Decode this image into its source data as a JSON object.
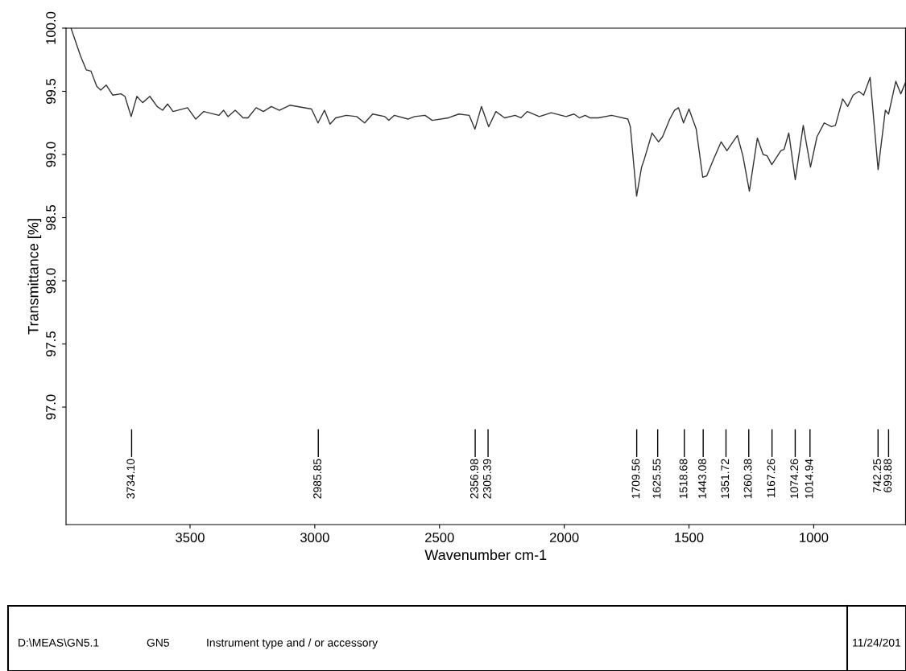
{
  "chart_data": {
    "type": "line",
    "xlabel": "Wavenumber cm-1",
    "ylabel": "Transmittance [%]",
    "xlim": [
      3997,
      632
    ],
    "xticks": [
      3500,
      3000,
      2500,
      2000,
      1500,
      1000
    ],
    "ylim": [
      96.07,
      100.0
    ],
    "yticks": [
      {
        "value": 97.0,
        "label": "97.0"
      },
      {
        "value": 97.5,
        "label": "97.5"
      },
      {
        "value": 98.0,
        "label": "98.0"
      },
      {
        "value": 98.5,
        "label": "98.5"
      },
      {
        "value": 99.0,
        "label": "99.0"
      },
      {
        "value": 99.5,
        "label": "99.5"
      },
      {
        "value": 100.0,
        "label": "100.0"
      }
    ],
    "grid": false,
    "legend": false,
    "marker": "none",
    "line_style": "solid",
    "series": [
      {
        "color": "#333333",
        "x": [
          3977,
          3939,
          3916,
          3897,
          3874,
          3858,
          3836,
          3810,
          3777,
          3761,
          3736,
          3713,
          3690,
          3661,
          3632,
          3610,
          3590,
          3568,
          3510,
          3477,
          3445,
          3384,
          3365,
          3348,
          3319,
          3287,
          3268,
          3235,
          3206,
          3174,
          3142,
          3100,
          3013,
          2987,
          2961,
          2939,
          2916,
          2874,
          2832,
          2800,
          2768,
          2719,
          2703,
          2681,
          2626,
          2600,
          2558,
          2529,
          2464,
          2423,
          2381,
          2358,
          2332,
          2303,
          2274,
          2239,
          2197,
          2174,
          2148,
          2100,
          2052,
          1993,
          1961,
          1939,
          1916,
          1897,
          1864,
          1810,
          1745,
          1735,
          1710,
          1690,
          1681,
          1648,
          1622,
          1606,
          1577,
          1558,
          1542,
          1522,
          1500,
          1471,
          1445,
          1429,
          1400,
          1371,
          1348,
          1306,
          1284,
          1258,
          1226,
          1203,
          1187,
          1168,
          1132,
          1119,
          1100,
          1074,
          1042,
          1013,
          987,
          958,
          929,
          913,
          884,
          864,
          842,
          819,
          800,
          774,
          742,
          713,
          700,
          671,
          651,
          632
        ],
        "values": [
          100.0,
          99.78,
          99.67,
          99.66,
          99.54,
          99.51,
          99.55,
          99.47,
          99.48,
          99.46,
          99.3,
          99.46,
          99.41,
          99.46,
          99.38,
          99.35,
          99.4,
          99.34,
          99.37,
          99.28,
          99.34,
          99.31,
          99.35,
          99.3,
          99.35,
          99.29,
          99.29,
          99.37,
          99.34,
          99.38,
          99.35,
          99.39,
          99.36,
          99.25,
          99.35,
          99.24,
          99.29,
          99.31,
          99.3,
          99.25,
          99.32,
          99.3,
          99.27,
          99.31,
          99.28,
          99.3,
          99.31,
          99.27,
          99.29,
          99.32,
          99.31,
          99.2,
          99.38,
          99.22,
          99.34,
          99.29,
          99.31,
          99.29,
          99.34,
          99.3,
          99.33,
          99.3,
          99.32,
          99.29,
          99.31,
          99.29,
          99.29,
          99.31,
          99.28,
          99.22,
          98.67,
          98.9,
          98.95,
          99.17,
          99.1,
          99.14,
          99.28,
          99.35,
          99.37,
          99.25,
          99.36,
          99.2,
          98.82,
          98.83,
          98.97,
          99.1,
          99.03,
          99.15,
          98.99,
          98.71,
          99.13,
          99.0,
          98.99,
          98.92,
          99.03,
          99.04,
          99.17,
          98.8,
          99.23,
          98.9,
          99.14,
          99.25,
          99.22,
          99.23,
          99.44,
          99.38,
          99.47,
          99.5,
          99.47,
          99.61,
          98.88,
          99.35,
          99.32,
          99.58,
          99.48,
          99.57
        ]
      },
      {
        "color": "#000000",
        "x": [
          3734.1,
          3734.1
        ],
        "values": [
          96.82,
          96.61
        ]
      },
      {
        "color": "#000000",
        "x": [
          2985.85,
          2985.85
        ],
        "values": [
          96.82,
          96.61
        ]
      },
      {
        "color": "#000000",
        "x": [
          2356.98,
          2356.98
        ],
        "values": [
          96.82,
          96.61
        ]
      },
      {
        "color": "#000000",
        "x": [
          2305.39,
          2305.39
        ],
        "values": [
          96.82,
          96.61
        ]
      },
      {
        "color": "#000000",
        "x": [
          1709.56,
          1709.56
        ],
        "values": [
          96.82,
          96.61
        ]
      },
      {
        "color": "#000000",
        "x": [
          1625.55,
          1625.55
        ],
        "values": [
          96.82,
          96.61
        ]
      },
      {
        "color": "#000000",
        "x": [
          1518.68,
          1518.68
        ],
        "values": [
          96.82,
          96.61
        ]
      },
      {
        "color": "#000000",
        "x": [
          1443.08,
          1443.08
        ],
        "values": [
          96.82,
          96.61
        ]
      },
      {
        "color": "#000000",
        "x": [
          1351.72,
          1351.72
        ],
        "values": [
          96.82,
          96.61
        ]
      },
      {
        "color": "#000000",
        "x": [
          1260.38,
          1260.38
        ],
        "values": [
          96.82,
          96.61
        ]
      },
      {
        "color": "#000000",
        "x": [
          1167.26,
          1167.26
        ],
        "values": [
          96.82,
          96.61
        ]
      },
      {
        "color": "#000000",
        "x": [
          1074.26,
          1074.26
        ],
        "values": [
          96.82,
          96.61
        ]
      },
      {
        "color": "#000000",
        "x": [
          1014.94,
          1014.94
        ],
        "values": [
          96.82,
          96.61
        ]
      },
      {
        "color": "#000000",
        "x": [
          742.25,
          742.25
        ],
        "values": [
          96.82,
          96.61
        ]
      },
      {
        "color": "#000000",
        "x": [
          699.88,
          699.88
        ],
        "values": [
          96.82,
          96.61
        ]
      }
    ],
    "annotations": [
      {
        "text": "3734.10",
        "x": 3734.1,
        "y": 96.61
      },
      {
        "text": "2985.85",
        "x": 2985.85,
        "y": 96.61
      },
      {
        "text": "2356.98",
        "x": 2356.98,
        "y": 96.61
      },
      {
        "text": "2305.39",
        "x": 2305.39,
        "y": 96.61
      },
      {
        "text": "1709.56",
        "x": 1709.56,
        "y": 96.61
      },
      {
        "text": "1625.55",
        "x": 1625.55,
        "y": 96.61
      },
      {
        "text": "1518.68",
        "x": 1518.68,
        "y": 96.61
      },
      {
        "text": "1443.08",
        "x": 1443.08,
        "y": 96.61
      },
      {
        "text": "1351.72",
        "x": 1351.72,
        "y": 96.61
      },
      {
        "text": "1260.38",
        "x": 1260.38,
        "y": 96.61
      },
      {
        "text": "1167.26",
        "x": 1167.26,
        "y": 96.61
      },
      {
        "text": "1074.26",
        "x": 1074.26,
        "y": 96.61
      },
      {
        "text": "1014.94",
        "x": 1014.94,
        "y": 96.61
      },
      {
        "text": "742.25",
        "x": 742.25,
        "y": 96.61
      },
      {
        "text": "699.88",
        "x": 699.88,
        "y": 96.61
      },
      "D:\\MEAS\\GN5.1",
      "GN5",
      "Instrument type and / or accessory",
      "11/24/201"
    ]
  }
}
